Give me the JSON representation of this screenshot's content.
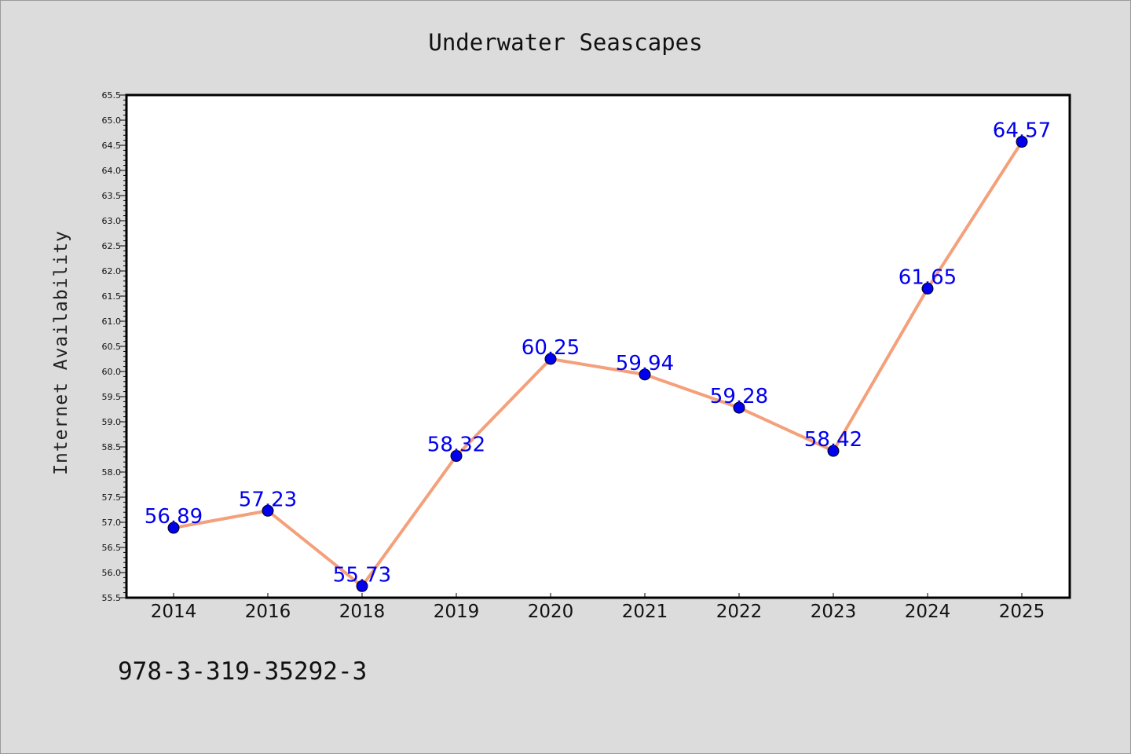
{
  "footer": {
    "isbn": "978-3-319-35292-3"
  },
  "colors": {
    "background": "#dcdcdc",
    "plot_background": "#ffffff",
    "line": "#f4a07a",
    "marker": "#0000ee",
    "data_label": "#0000ee"
  },
  "chart_data": {
    "type": "line",
    "title": "Underwater Seascapes",
    "xlabel": "",
    "ylabel": "Internet Availability",
    "categories": [
      "2014",
      "2016",
      "2018",
      "2019",
      "2020",
      "2021",
      "2022",
      "2023",
      "2024",
      "2025"
    ],
    "series": [
      {
        "values": [
          56.89,
          57.23,
          55.73,
          58.32,
          60.25,
          59.94,
          59.28,
          58.42,
          61.65,
          64.57
        ],
        "data_labels": [
          "56.89",
          "57.23",
          "55.73",
          "58.32",
          "60.25",
          "59.94",
          "59.28",
          "58.42",
          "61.65",
          "64.57"
        ],
        "line_color": "#f4a07a",
        "marker_color": "#0000ee"
      }
    ],
    "ylim": [
      55.5,
      65.5
    ],
    "y_major_ticks": [
      "55.5",
      "56.0",
      "56.5",
      "57.0",
      "57.5",
      "58.0",
      "58.5",
      "59.0",
      "59.5",
      "60.0",
      "60.5",
      "61.0",
      "61.5",
      "62.0",
      "62.5",
      "63.0",
      "63.5",
      "64.0",
      "64.5",
      "65.0",
      "65.5"
    ],
    "y_major_step": 0.5,
    "y_minor_step": 0.1,
    "grid": false,
    "legend": "none"
  }
}
